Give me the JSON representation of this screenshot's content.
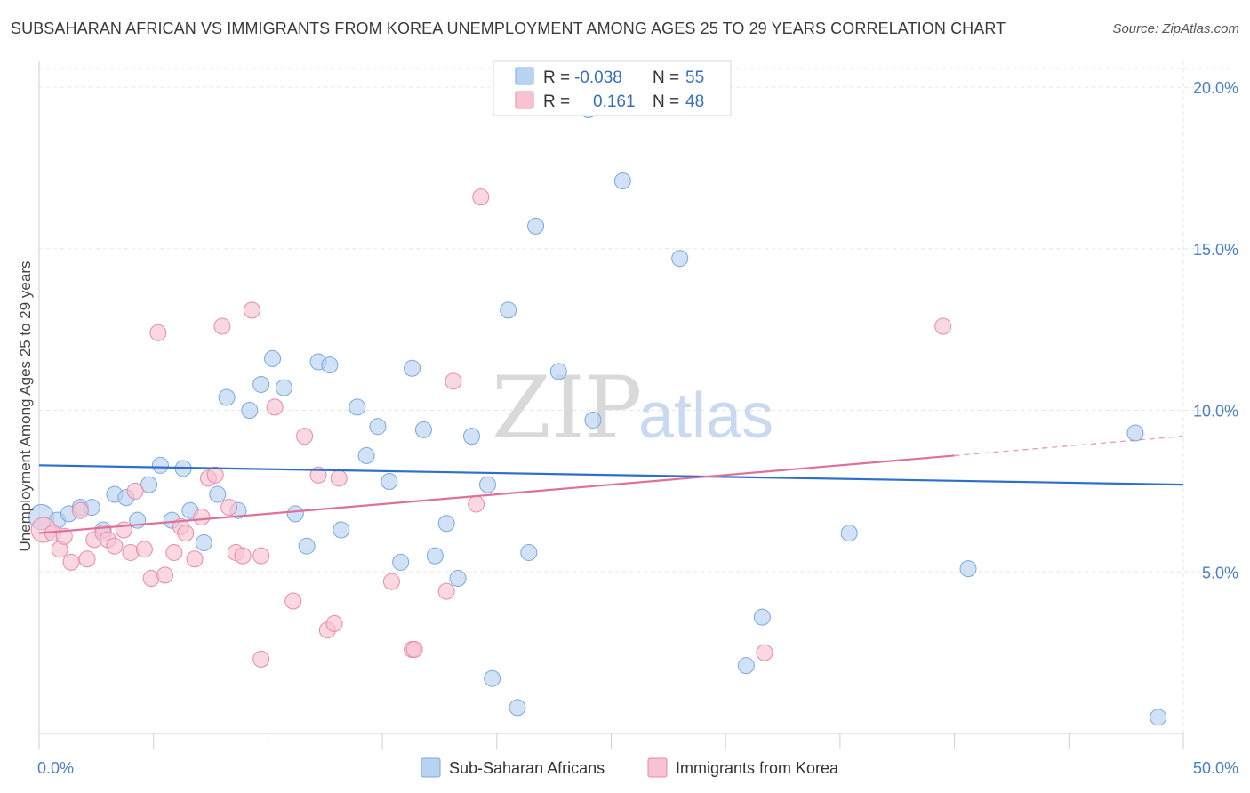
{
  "header": {
    "title": "SUBSAHARAN AFRICAN VS IMMIGRANTS FROM KOREA UNEMPLOYMENT AMONG AGES 25 TO 29 YEARS CORRELATION CHART",
    "source": "Source: ZipAtlas.com"
  },
  "watermark": {
    "zip": "ZIP",
    "atlas": "atlas"
  },
  "colors": {
    "blue_fill": "#b9d3f2",
    "blue_stroke": "#7aa8de",
    "blue_line": "#2f6fcc",
    "pink_fill": "#f7c3d3",
    "pink_stroke": "#e98aa9",
    "pink_line": "#e0709a",
    "tick_text": "#4a7fc8"
  },
  "legend": {
    "rows": [
      {
        "r_label": "R =",
        "r_value": "-0.038",
        "n_label": "N =",
        "n_value": "55"
      },
      {
        "r_label": "R =",
        "r_value": "0.161",
        "n_label": "N =",
        "n_value": "48"
      }
    ]
  },
  "bottom_legend": {
    "items": [
      "Sub-Saharan Africans",
      "Immigrants from Korea"
    ]
  },
  "chart_data": {
    "type": "scatter",
    "title": "SUBSAHARAN AFRICAN VS IMMIGRANTS FROM KOREA UNEMPLOYMENT AMONG AGES 25 TO 29 YEARS CORRELATION CHART",
    "xlabel": "",
    "ylabel": "Unemployment Among Ages 25 to 29 years",
    "xlim": [
      0,
      50
    ],
    "ylim": [
      0,
      20.8
    ],
    "x_tick_labels": [
      "0.0%",
      "50.0%"
    ],
    "y_ticks": [
      5,
      10,
      15,
      20
    ],
    "y_tick_labels": [
      "5.0%",
      "10.0%",
      "15.0%",
      "20.0%"
    ],
    "grid": true,
    "legend_position": "top-center",
    "series": [
      {
        "name": "Sub-Saharan Africans",
        "color": "#b9d3f2",
        "trend": {
          "x": [
            0,
            50
          ],
          "y": [
            8.3,
            7.7
          ]
        },
        "points": [
          [
            0.1,
            6.7
          ],
          [
            0.8,
            6.6
          ],
          [
            1.3,
            6.8
          ],
          [
            1.8,
            7.0
          ],
          [
            2.3,
            7.0
          ],
          [
            2.8,
            6.3
          ],
          [
            3.3,
            7.4
          ],
          [
            3.8,
            7.3
          ],
          [
            4.3,
            6.6
          ],
          [
            4.8,
            7.7
          ],
          [
            5.3,
            8.3
          ],
          [
            5.8,
            6.6
          ],
          [
            6.3,
            8.2
          ],
          [
            6.6,
            6.9
          ],
          [
            7.2,
            5.9
          ],
          [
            7.8,
            7.4
          ],
          [
            8.2,
            10.4
          ],
          [
            8.7,
            6.9
          ],
          [
            9.2,
            10.0
          ],
          [
            9.7,
            10.8
          ],
          [
            10.2,
            11.6
          ],
          [
            10.7,
            10.7
          ],
          [
            11.2,
            6.8
          ],
          [
            11.7,
            5.8
          ],
          [
            12.2,
            11.5
          ],
          [
            12.7,
            11.4
          ],
          [
            13.2,
            6.3
          ],
          [
            13.9,
            10.1
          ],
          [
            14.3,
            8.6
          ],
          [
            14.8,
            9.5
          ],
          [
            15.3,
            7.8
          ],
          [
            15.8,
            5.3
          ],
          [
            16.3,
            11.3
          ],
          [
            16.8,
            9.4
          ],
          [
            17.3,
            5.5
          ],
          [
            17.8,
            6.5
          ],
          [
            18.3,
            4.8
          ],
          [
            18.9,
            9.2
          ],
          [
            19.6,
            7.7
          ],
          [
            19.8,
            1.7
          ],
          [
            20.5,
            13.1
          ],
          [
            20.9,
            0.8
          ],
          [
            21.4,
            5.6
          ],
          [
            21.7,
            15.7
          ],
          [
            22.7,
            11.2
          ],
          [
            24.0,
            19.3
          ],
          [
            24.2,
            9.7
          ],
          [
            25.5,
            17.1
          ],
          [
            28.0,
            14.7
          ],
          [
            30.9,
            2.1
          ],
          [
            31.6,
            3.6
          ],
          [
            35.4,
            6.2
          ],
          [
            40.6,
            5.1
          ],
          [
            47.9,
            9.3
          ],
          [
            48.9,
            0.5
          ]
        ]
      },
      {
        "name": "Immigrants from Korea",
        "color": "#f7c3d3",
        "trend": {
          "x": [
            0,
            40
          ],
          "y": [
            6.2,
            8.6
          ]
        },
        "trend_dashed": {
          "x": [
            40,
            50
          ],
          "y": [
            8.6,
            9.2
          ]
        },
        "points": [
          [
            0.2,
            6.3
          ],
          [
            0.6,
            6.2
          ],
          [
            0.9,
            5.7
          ],
          [
            1.1,
            6.1
          ],
          [
            1.4,
            5.3
          ],
          [
            1.8,
            6.9
          ],
          [
            2.1,
            5.4
          ],
          [
            2.4,
            6.0
          ],
          [
            2.8,
            6.2
          ],
          [
            3.0,
            6.0
          ],
          [
            3.3,
            5.8
          ],
          [
            3.7,
            6.3
          ],
          [
            4.0,
            5.6
          ],
          [
            4.2,
            7.5
          ],
          [
            4.6,
            5.7
          ],
          [
            4.9,
            4.8
          ],
          [
            5.2,
            12.4
          ],
          [
            5.5,
            4.9
          ],
          [
            5.9,
            5.6
          ],
          [
            6.2,
            6.4
          ],
          [
            6.4,
            6.2
          ],
          [
            6.8,
            5.4
          ],
          [
            7.1,
            6.7
          ],
          [
            7.4,
            7.9
          ],
          [
            7.7,
            8.0
          ],
          [
            8.0,
            12.6
          ],
          [
            8.3,
            7.0
          ],
          [
            8.6,
            5.6
          ],
          [
            8.9,
            5.5
          ],
          [
            9.3,
            13.1
          ],
          [
            9.7,
            2.3
          ],
          [
            9.7,
            5.5
          ],
          [
            10.3,
            10.1
          ],
          [
            11.1,
            4.1
          ],
          [
            11.6,
            9.2
          ],
          [
            12.2,
            8.0
          ],
          [
            12.6,
            3.2
          ],
          [
            12.9,
            3.4
          ],
          [
            13.1,
            7.9
          ],
          [
            15.4,
            4.7
          ],
          [
            16.3,
            2.6
          ],
          [
            16.4,
            2.6
          ],
          [
            17.8,
            4.4
          ],
          [
            18.1,
            10.9
          ],
          [
            19.1,
            7.1
          ],
          [
            19.3,
            16.6
          ],
          [
            31.7,
            2.5
          ],
          [
            39.5,
            12.6
          ]
        ]
      }
    ]
  }
}
